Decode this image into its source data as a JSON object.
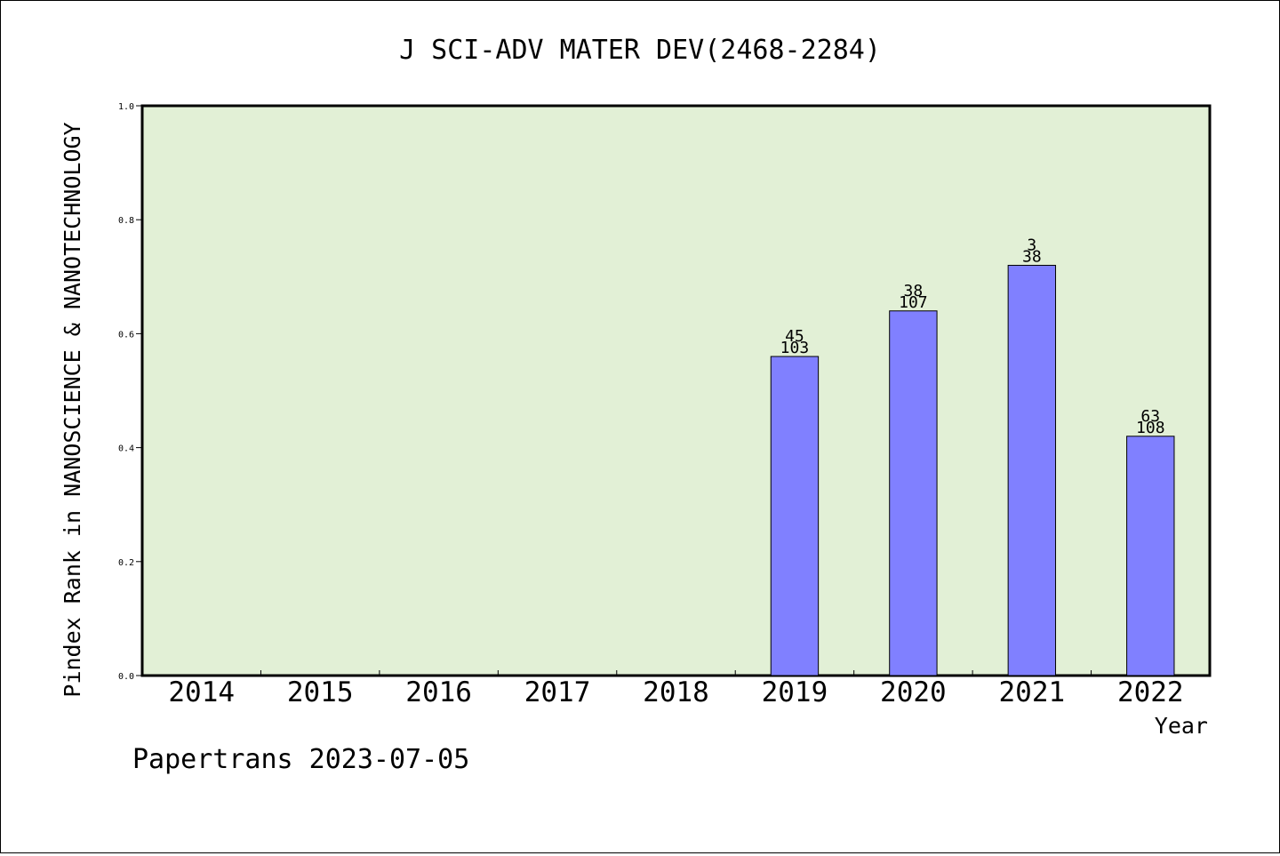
{
  "chart_data": {
    "type": "bar",
    "title": "J SCI-ADV MATER DEV(2468-2284)",
    "xlabel": "Year",
    "ylabel": "Pindex Rank in NANOSCIENCE & NANOTECHNOLOGY",
    "footer": "Papertrans 2023-07-05",
    "categories": [
      "2014",
      "2015",
      "2016",
      "2017",
      "2018",
      "2019",
      "2020",
      "2021",
      "2022"
    ],
    "values": [
      null,
      null,
      null,
      null,
      null,
      0.56,
      0.64,
      0.72,
      0.42
    ],
    "bar_labels": [
      null,
      null,
      null,
      null,
      null,
      {
        "rank": "45",
        "total": "103"
      },
      {
        "rank": "38",
        "total": "107"
      },
      {
        "rank": "3",
        "total": "38"
      },
      {
        "rank": "63",
        "total": "108"
      }
    ],
    "ylim": [
      0,
      1.0
    ],
    "yticks": [
      "0.0",
      "0.2",
      "0.4",
      "0.6",
      "0.8",
      "1.0"
    ],
    "grid": false,
    "colors": {
      "plot_background": "#e2f0d6",
      "bar_fill": "#8080ff",
      "bar_stroke": "#000000",
      "axis": "#000000"
    }
  }
}
